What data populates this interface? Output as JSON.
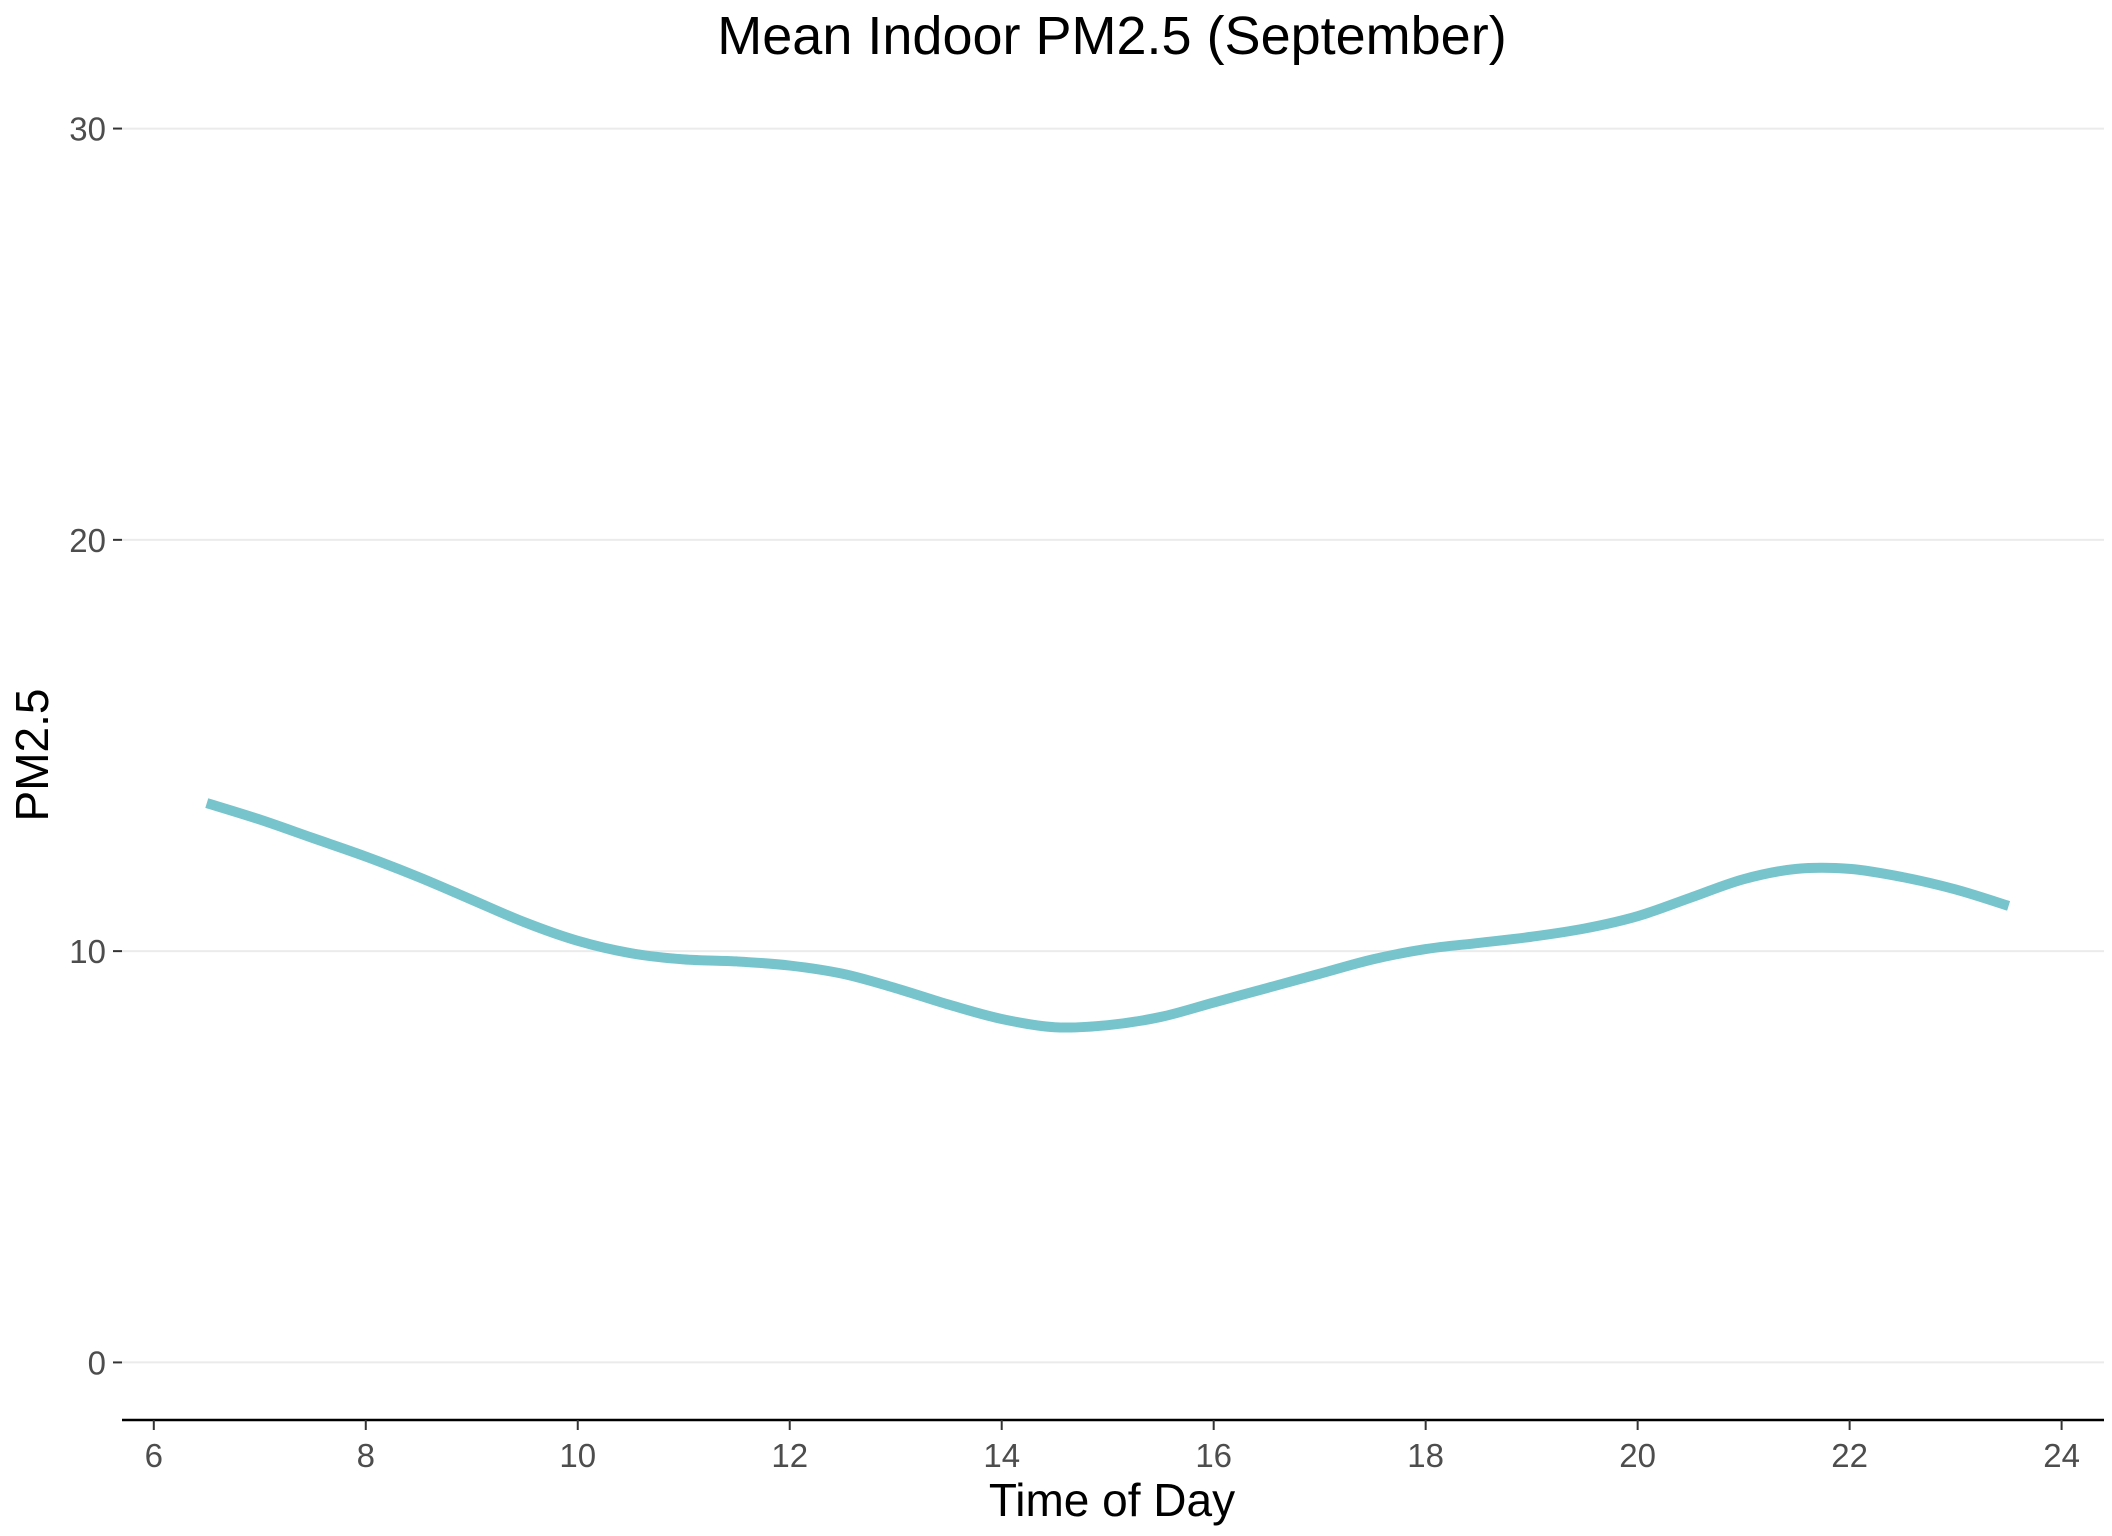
{
  "chart_data": {
    "type": "line",
    "title": "Mean Indoor PM2.5 (September)",
    "xlabel": "Time of Day",
    "ylabel": "PM2.5",
    "xlim": [
      5.7,
      24.4
    ],
    "ylim": [
      -1.4,
      30.5
    ],
    "x_ticks": [
      6,
      8,
      10,
      12,
      14,
      16,
      18,
      20,
      22,
      24
    ],
    "x_tick_labels": [
      "6",
      "8",
      "10",
      "12",
      "14",
      "16",
      "18",
      "20",
      "22",
      "24"
    ],
    "y_ticks": [
      0,
      10,
      20,
      30
    ],
    "y_tick_labels": [
      "0",
      "10",
      "20",
      "30"
    ],
    "grid": "horizontal",
    "legend": "none",
    "series": [
      {
        "color": "#77c4cc",
        "x": [
          6.5,
          7.0,
          7.5,
          8.0,
          8.5,
          9.0,
          9.5,
          10.0,
          10.5,
          11.0,
          11.5,
          12.0,
          12.5,
          13.0,
          13.5,
          14.0,
          14.5,
          15.0,
          15.5,
          16.0,
          16.5,
          17.0,
          17.5,
          18.0,
          18.5,
          19.0,
          19.5,
          20.0,
          20.5,
          21.0,
          21.5,
          22.0,
          22.5,
          23.0,
          23.5
        ],
        "y": [
          13.6,
          13.2,
          12.75,
          12.3,
          11.8,
          11.25,
          10.7,
          10.25,
          9.95,
          9.8,
          9.75,
          9.65,
          9.45,
          9.1,
          8.7,
          8.35,
          8.15,
          8.2,
          8.4,
          8.75,
          9.1,
          9.45,
          9.8,
          10.05,
          10.2,
          10.35,
          10.55,
          10.85,
          11.3,
          11.75,
          12.0,
          12.0,
          11.8,
          11.5,
          11.1
        ]
      }
    ]
  }
}
